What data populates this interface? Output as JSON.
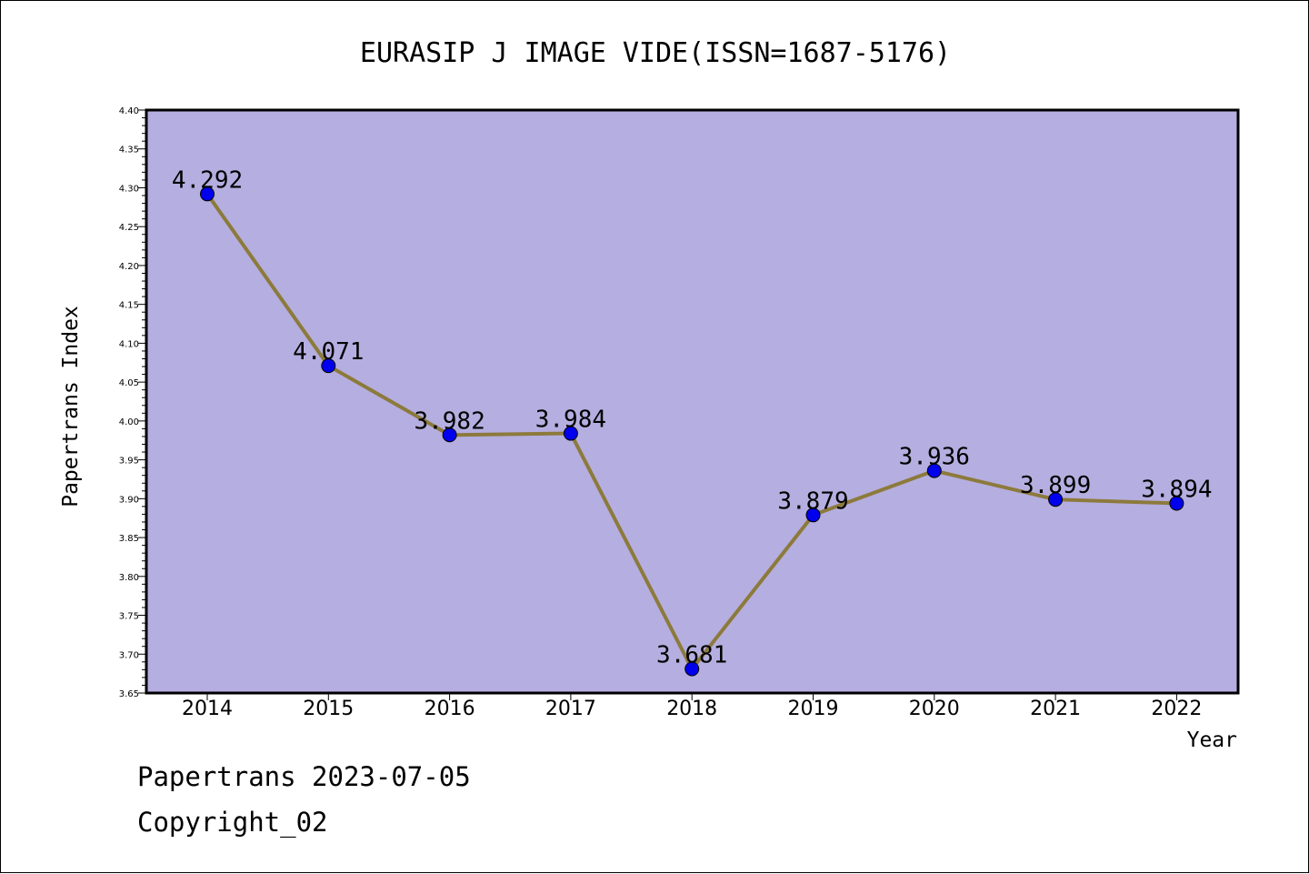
{
  "chart_data": {
    "type": "line",
    "title": "EURASIP J IMAGE VIDE(ISSN=1687-5176)",
    "xlabel": "Year",
    "ylabel": "Papertrans Index",
    "categories": [
      "2014",
      "2015",
      "2016",
      "2017",
      "2018",
      "2019",
      "2020",
      "2021",
      "2022"
    ],
    "series": [
      {
        "values": [
          4.292,
          4.071,
          3.982,
          3.984,
          3.681,
          3.879,
          3.936,
          3.899,
          3.894
        ],
        "labels": [
          "4.292",
          "4.071",
          "3.982",
          "3.984",
          "3.681",
          "3.879",
          "3.936",
          "3.899",
          "3.894"
        ]
      }
    ],
    "ylim": [
      3.65,
      4.4
    ],
    "yticks": [
      "3.65",
      "3.70",
      "3.75",
      "3.80",
      "3.85",
      "3.90",
      "3.95",
      "4.00",
      "4.05",
      "4.10",
      "4.15",
      "4.20",
      "4.25",
      "4.30",
      "4.35",
      "4.40"
    ],
    "grid": false,
    "legend": "none",
    "colors": {
      "plot_background": "#b5aee0",
      "line": "#8c7a3c",
      "marker": "#0000ee"
    }
  },
  "footer": {
    "line1": "Papertrans 2023-07-05",
    "line2": "Copyright_02"
  }
}
